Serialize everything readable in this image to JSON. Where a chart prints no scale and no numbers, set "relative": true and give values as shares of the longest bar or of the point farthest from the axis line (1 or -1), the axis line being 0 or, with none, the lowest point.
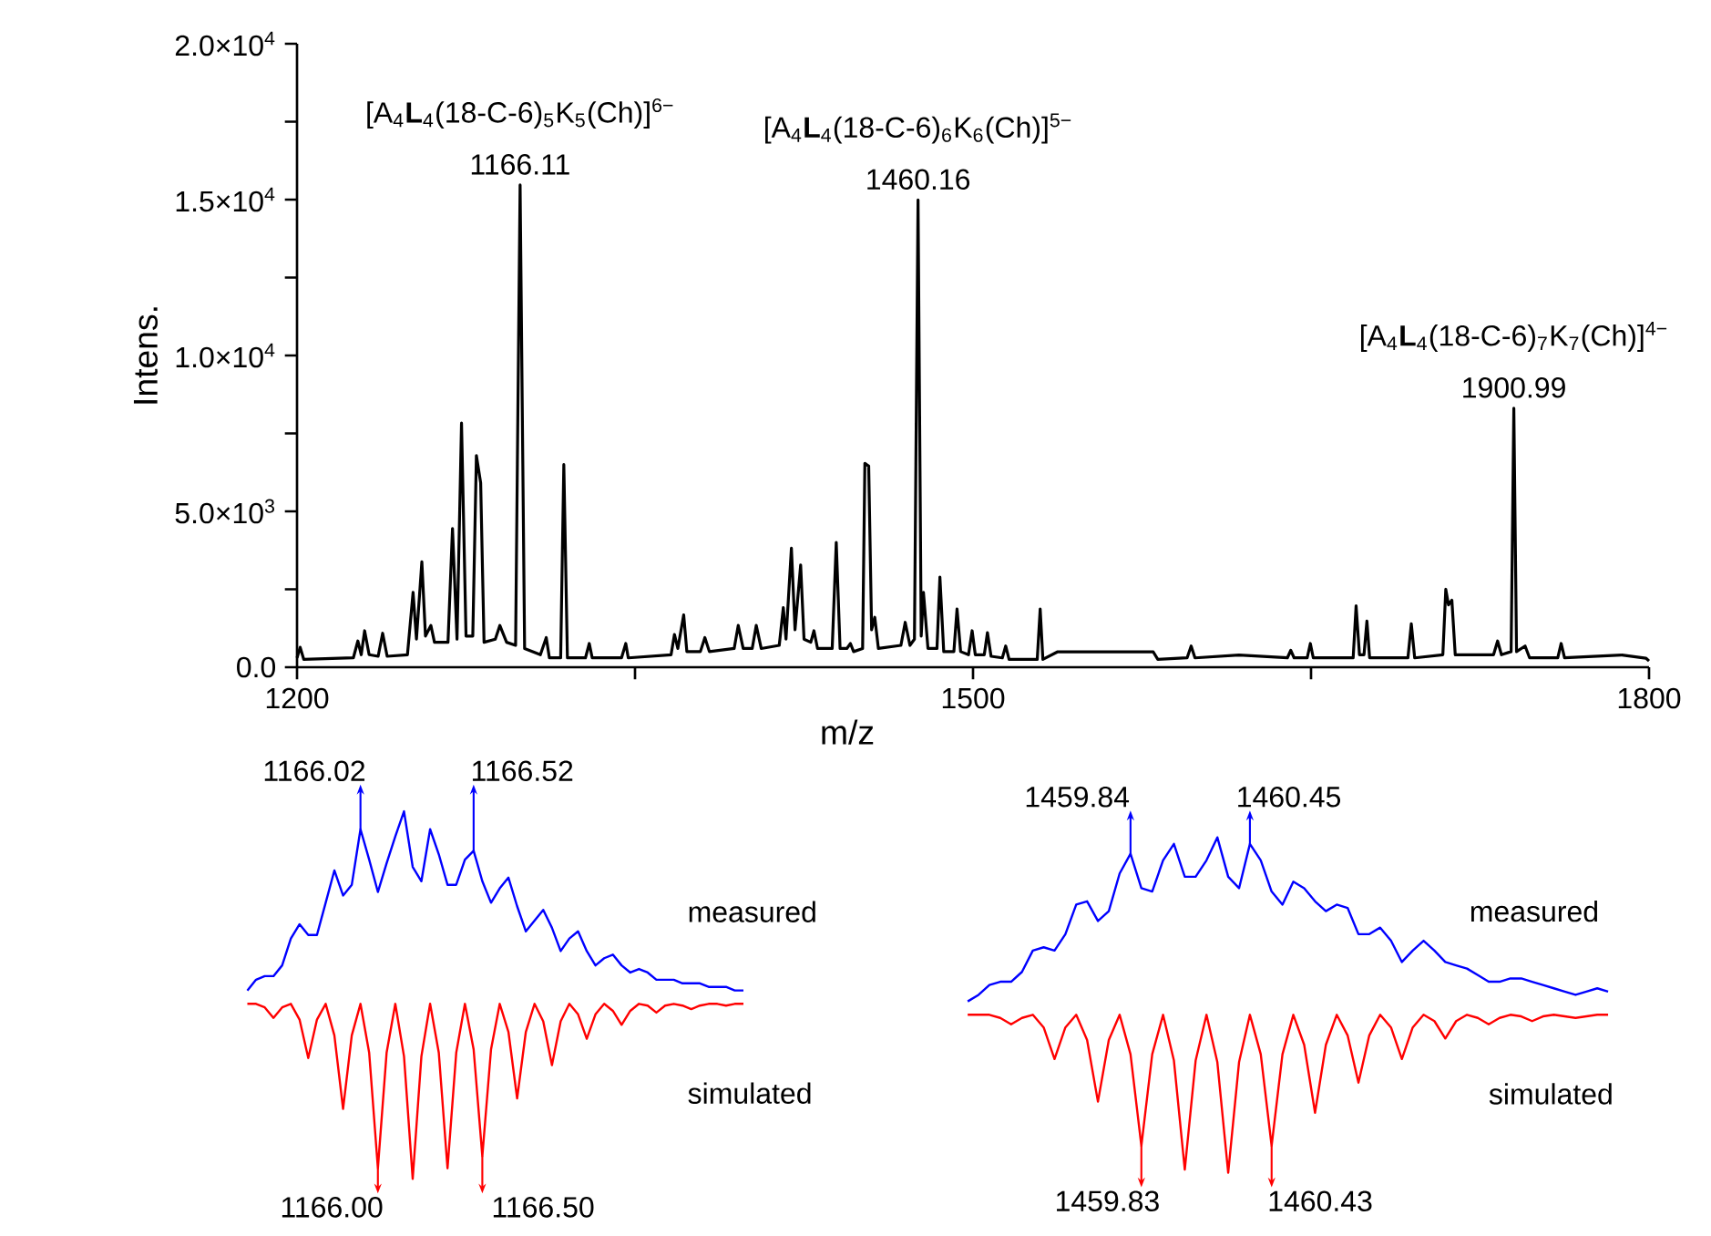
{
  "chart_data": [
    {
      "type": "line",
      "xlabel": "m/z",
      "ylabel": "Intens.",
      "xlim": [
        1200,
        1800
      ],
      "ylim": [
        0,
        20000
      ],
      "xticks": [
        1200,
        {
          "value": 1350,
          "label": null
        },
        1500,
        {
          "value": 1650,
          "label": null
        },
        1800
      ],
      "yticks": [
        {
          "value": 0,
          "label": "0.0"
        },
        {
          "value": 2500,
          "label": null
        },
        {
          "value": 5000,
          "label": "5.0×10$^{3}$"
        },
        {
          "value": 7500,
          "label": null
        },
        {
          "value": 10000,
          "label": "1.0×10$^{4}$"
        },
        {
          "value": 12500,
          "label": null
        },
        {
          "value": 15000,
          "label": "1.5×10$^{4}$"
        },
        {
          "value": 17500,
          "label": null
        },
        {
          "value": 20000,
          "label": "2.0×10$^{4}$"
        }
      ],
      "series": [
        {
          "color": "#000000",
          "x": [
            1200,
            1201.4,
            1203,
            1225,
            1227,
            1228.5,
            1230,
            1232,
            1236,
            1238,
            1240,
            1249,
            1251.5,
            1253,
            1255.4,
            1257,
            1259.4,
            1261,
            1267,
            1269,
            1271,
            1273,
            1275,
            1278,
            1279.6,
            1281.5,
            1283,
            1288,
            1290,
            1293,
            1297,
            1299,
            1301,
            1308,
            1310.6,
            1312,
            1317,
            1318.4,
            1320,
            1328,
            1329.7,
            1331,
            1344,
            1345.9,
            1347,
            1366,
            1367.5,
            1369,
            1371.6,
            1373,
            1379,
            1381,
            1383,
            1394,
            1395.8,
            1398,
            1402,
            1403.8,
            1406,
            1414,
            1415.8,
            1417,
            1419.4,
            1421,
            1423.5,
            1425,
            1428,
            1429.4,
            1431,
            1437.5,
            1439.3,
            1441,
            1444,
            1445.6,
            1447,
            1451,
            1452,
            1453.7,
            1455,
            1456.4,
            1458,
            1468,
            1469.9,
            1472,
            1474,
            1475.6,
            1477,
            1478,
            1480,
            1484,
            1485.3,
            1487,
            1491.5,
            1492.9,
            1494.5,
            1498,
            1499.6,
            1501,
            1505,
            1506.4,
            1508,
            1513,
            1514.5,
            1516,
            1528.5,
            1529.8,
            1531,
            1537.4,
            1580,
            1582,
            1595,
            1596.8,
            1598.5,
            1618,
            1639.5,
            1641,
            1642.5,
            1648.3,
            1649.7,
            1651,
            1668.7,
            1670,
            1671.5,
            1673.5,
            1674.8,
            1676,
            1693,
            1694.5,
            1696,
            1708.5,
            1709.8,
            1711,
            1712.5,
            1714,
            1731,
            1732.8,
            1734.5,
            1738.8,
            1740,
            1741.2,
            1745,
            1747,
            1759.5,
            1761,
            1762.5,
            1788,
            1798.6,
            1800
          ],
          "values": [
            300,
            640,
            250,
            300,
            840,
            400,
            1170,
            400,
            350,
            1090,
            350,
            400,
            2400,
            900,
            3380,
            1000,
            1340,
            800,
            800,
            4450,
            900,
            7830,
            1000,
            1000,
            6790,
            5910,
            800,
            900,
            1340,
            800,
            700,
            15470,
            600,
            400,
            950,
            300,
            300,
            6500,
            300,
            300,
            760,
            300,
            300,
            760,
            300,
            400,
            1050,
            600,
            1680,
            500,
            500,
            950,
            500,
            600,
            1340,
            600,
            600,
            1340,
            600,
            700,
            1910,
            900,
            3820,
            1200,
            3280,
            900,
            800,
            1170,
            600,
            600,
            4000,
            600,
            600,
            760,
            500,
            600,
            6540,
            6450,
            1200,
            1600,
            600,
            700,
            1440,
            700,
            900,
            14990,
            1000,
            2400,
            600,
            600,
            2890,
            500,
            500,
            1870,
            500,
            400,
            1170,
            400,
            400,
            1110,
            350,
            300,
            680,
            250,
            250,
            1870,
            250,
            490,
            490,
            250,
            300,
            680,
            300,
            390,
            300,
            540,
            300,
            300,
            760,
            300,
            300,
            1970,
            400,
            400,
            1480,
            300,
            300,
            1390,
            300,
            400,
            2500,
            2000,
            2150,
            400,
            400,
            840,
            400,
            500,
            8310,
            500,
            680,
            300,
            300,
            760,
            300,
            390,
            290,
            200
          ]
        }
      ],
      "annotations": [
        {
          "text": "1166.11",
          "x": 1299,
          "y": 15470
        },
        "[A$_{4}$**L**$_{4}$(18-C-6)$_{5}$K$_{5}$(Ch)]$^{6−}$",
        {
          "text": "1460.16",
          "x": 1475.6,
          "y": 14990
        },
        "[A$_{4}$**L**$_{4}$(18-C-6)$_{6}$K$_{6}$(Ch)]$^{5−}$",
        {
          "text": "1900.99",
          "x": 1740,
          "y": 8310
        },
        "[A$_{4}$**L**$_{4}$(18-C-6)$_{7}$K$_{7}$(Ch)]$^{4−}$"
      ]
    },
    {
      "type": "line",
      "relative": true,
      "categories": [
        null,
        null,
        null,
        null,
        null,
        null,
        null,
        null,
        null,
        null,
        null,
        null,
        null,
        null,
        null,
        null,
        null,
        null,
        null,
        null,
        null,
        null,
        null,
        null,
        null,
        null,
        null,
        null,
        null,
        null,
        null,
        null,
        null,
        null,
        null,
        null,
        null,
        null,
        null,
        null,
        null,
        null,
        null,
        null,
        null,
        null,
        null,
        null,
        null,
        null,
        null,
        null,
        null,
        null,
        null,
        null,
        null,
        null
      ],
      "series": [
        {
          "name": "measured",
          "color": "#0000ff",
          "values": [
            0,
            0.06,
            0.08,
            0.08,
            0.14,
            0.29,
            0.37,
            0.31,
            0.31,
            0.49,
            0.67,
            0.53,
            0.59,
            0.9,
            0.73,
            0.55,
            0.71,
            0.86,
            1,
            0.69,
            0.61,
            0.9,
            0.76,
            0.59,
            0.59,
            0.73,
            0.78,
            0.61,
            0.49,
            0.57,
            0.63,
            0.47,
            0.33,
            0.39,
            0.45,
            0.35,
            0.22,
            0.29,
            0.33,
            0.22,
            0.14,
            0.18,
            0.2,
            0.14,
            0.1,
            0.12,
            0.1,
            0.06,
            0.06,
            0.06,
            0.04,
            0.04,
            0.04,
            0.02,
            0.02,
            0.02,
            0,
            0
          ]
        }
      ],
      "annotations": [
        "1166.02",
        "1166.52"
      ]
    },
    {
      "type": "line",
      "relative": true,
      "categories": [
        null,
        null,
        null,
        null,
        null,
        null,
        null,
        null,
        null,
        null,
        null,
        null,
        null,
        null,
        null,
        null,
        null,
        null,
        null,
        null,
        null,
        null,
        null,
        null,
        null,
        null,
        null,
        null,
        null,
        null,
        null,
        null,
        null,
        null,
        null,
        null,
        null,
        null,
        null,
        null,
        null,
        null,
        null,
        null,
        null,
        null,
        null,
        null,
        null,
        null,
        null,
        null,
        null,
        null,
        null,
        null,
        null,
        null
      ],
      "series": [
        {
          "name": "simulated",
          "color": "#ff0000",
          "values": [
            1,
            1,
            0.98,
            0.92,
            0.98,
            1,
            0.91,
            0.69,
            0.91,
            1,
            0.82,
            0.4,
            0.82,
            1,
            0.72,
            0.06,
            0.72,
            1,
            0.7,
            0,
            0.7,
            1,
            0.72,
            0.06,
            0.72,
            1,
            0.74,
            0.13,
            0.74,
            1,
            0.84,
            0.46,
            0.84,
            1,
            0.9,
            0.65,
            0.9,
            1,
            0.94,
            0.8,
            0.94,
            1,
            0.96,
            0.88,
            0.96,
            1,
            0.99,
            0.95,
            0.99,
            1,
            0.99,
            0.97,
            0.99,
            1,
            1,
            0.99,
            1,
            1
          ]
        }
      ],
      "annotations": [
        "1166.00",
        "1166.50"
      ]
    },
    {
      "type": "line",
      "relative": true,
      "categories": [
        null,
        null,
        null,
        null,
        null,
        null,
        null,
        null,
        null,
        null,
        null,
        null,
        null,
        null,
        null,
        null,
        null,
        null,
        null,
        null,
        null,
        null,
        null,
        null,
        null,
        null,
        null,
        null,
        null,
        null,
        null,
        null,
        null,
        null,
        null,
        null,
        null,
        null,
        null,
        null,
        null,
        null,
        null,
        null,
        null,
        null,
        null,
        null,
        null,
        null,
        null,
        null,
        null,
        null,
        null,
        null,
        null,
        null,
        null,
        null
      ],
      "series": [
        {
          "name": "measured",
          "color": "#0000ff",
          "values": [
            0,
            0.04,
            0.1,
            0.12,
            0.12,
            0.18,
            0.31,
            0.33,
            0.31,
            0.41,
            0.59,
            0.61,
            0.49,
            0.55,
            0.78,
            0.9,
            0.69,
            0.67,
            0.86,
            0.96,
            0.76,
            0.76,
            0.86,
            1,
            0.76,
            0.69,
            0.96,
            0.86,
            0.67,
            0.59,
            0.73,
            0.69,
            0.61,
            0.55,
            0.59,
            0.57,
            0.41,
            0.41,
            0.45,
            0.37,
            0.24,
            0.31,
            0.37,
            0.31,
            0.24,
            0.22,
            0.2,
            0.16,
            0.12,
            0.12,
            0.14,
            0.14,
            0.12,
            0.1,
            0.08,
            0.06,
            0.04,
            0.06,
            0.08,
            0.06
          ]
        }
      ],
      "annotations": [
        "1459.84",
        "1460.45"
      ]
    },
    {
      "type": "line",
      "relative": true,
      "categories": [
        null,
        null,
        null,
        null,
        null,
        null,
        null,
        null,
        null,
        null,
        null,
        null,
        null,
        null,
        null,
        null,
        null,
        null,
        null,
        null,
        null,
        null,
        null,
        null,
        null,
        null,
        null,
        null,
        null,
        null,
        null,
        null,
        null,
        null,
        null,
        null,
        null,
        null,
        null,
        null,
        null,
        null,
        null,
        null,
        null,
        null,
        null,
        null,
        null,
        null,
        null,
        null,
        null,
        null,
        null,
        null,
        null,
        null,
        null,
        null
      ],
      "series": [
        {
          "name": "simulated",
          "color": "#ff0000",
          "values": [
            1,
            1,
            1,
            0.98,
            0.94,
            0.98,
            1,
            0.92,
            0.72,
            0.92,
            1,
            0.84,
            0.45,
            0.84,
            1,
            0.75,
            0.17,
            0.75,
            1,
            0.71,
            0.02,
            0.71,
            1,
            0.7,
            0,
            0.7,
            1,
            0.75,
            0.17,
            0.75,
            1,
            0.81,
            0.38,
            0.81,
            1,
            0.87,
            0.57,
            0.87,
            1,
            0.92,
            0.72,
            0.92,
            1,
            0.96,
            0.85,
            0.96,
            1,
            0.98,
            0.94,
            0.98,
            1,
            0.99,
            0.96,
            0.99,
            1,
            0.99,
            0.98,
            0.99,
            1,
            1
          ]
        }
      ],
      "annotations": [
        "1459.83",
        "1460.43"
      ]
    }
  ]
}
